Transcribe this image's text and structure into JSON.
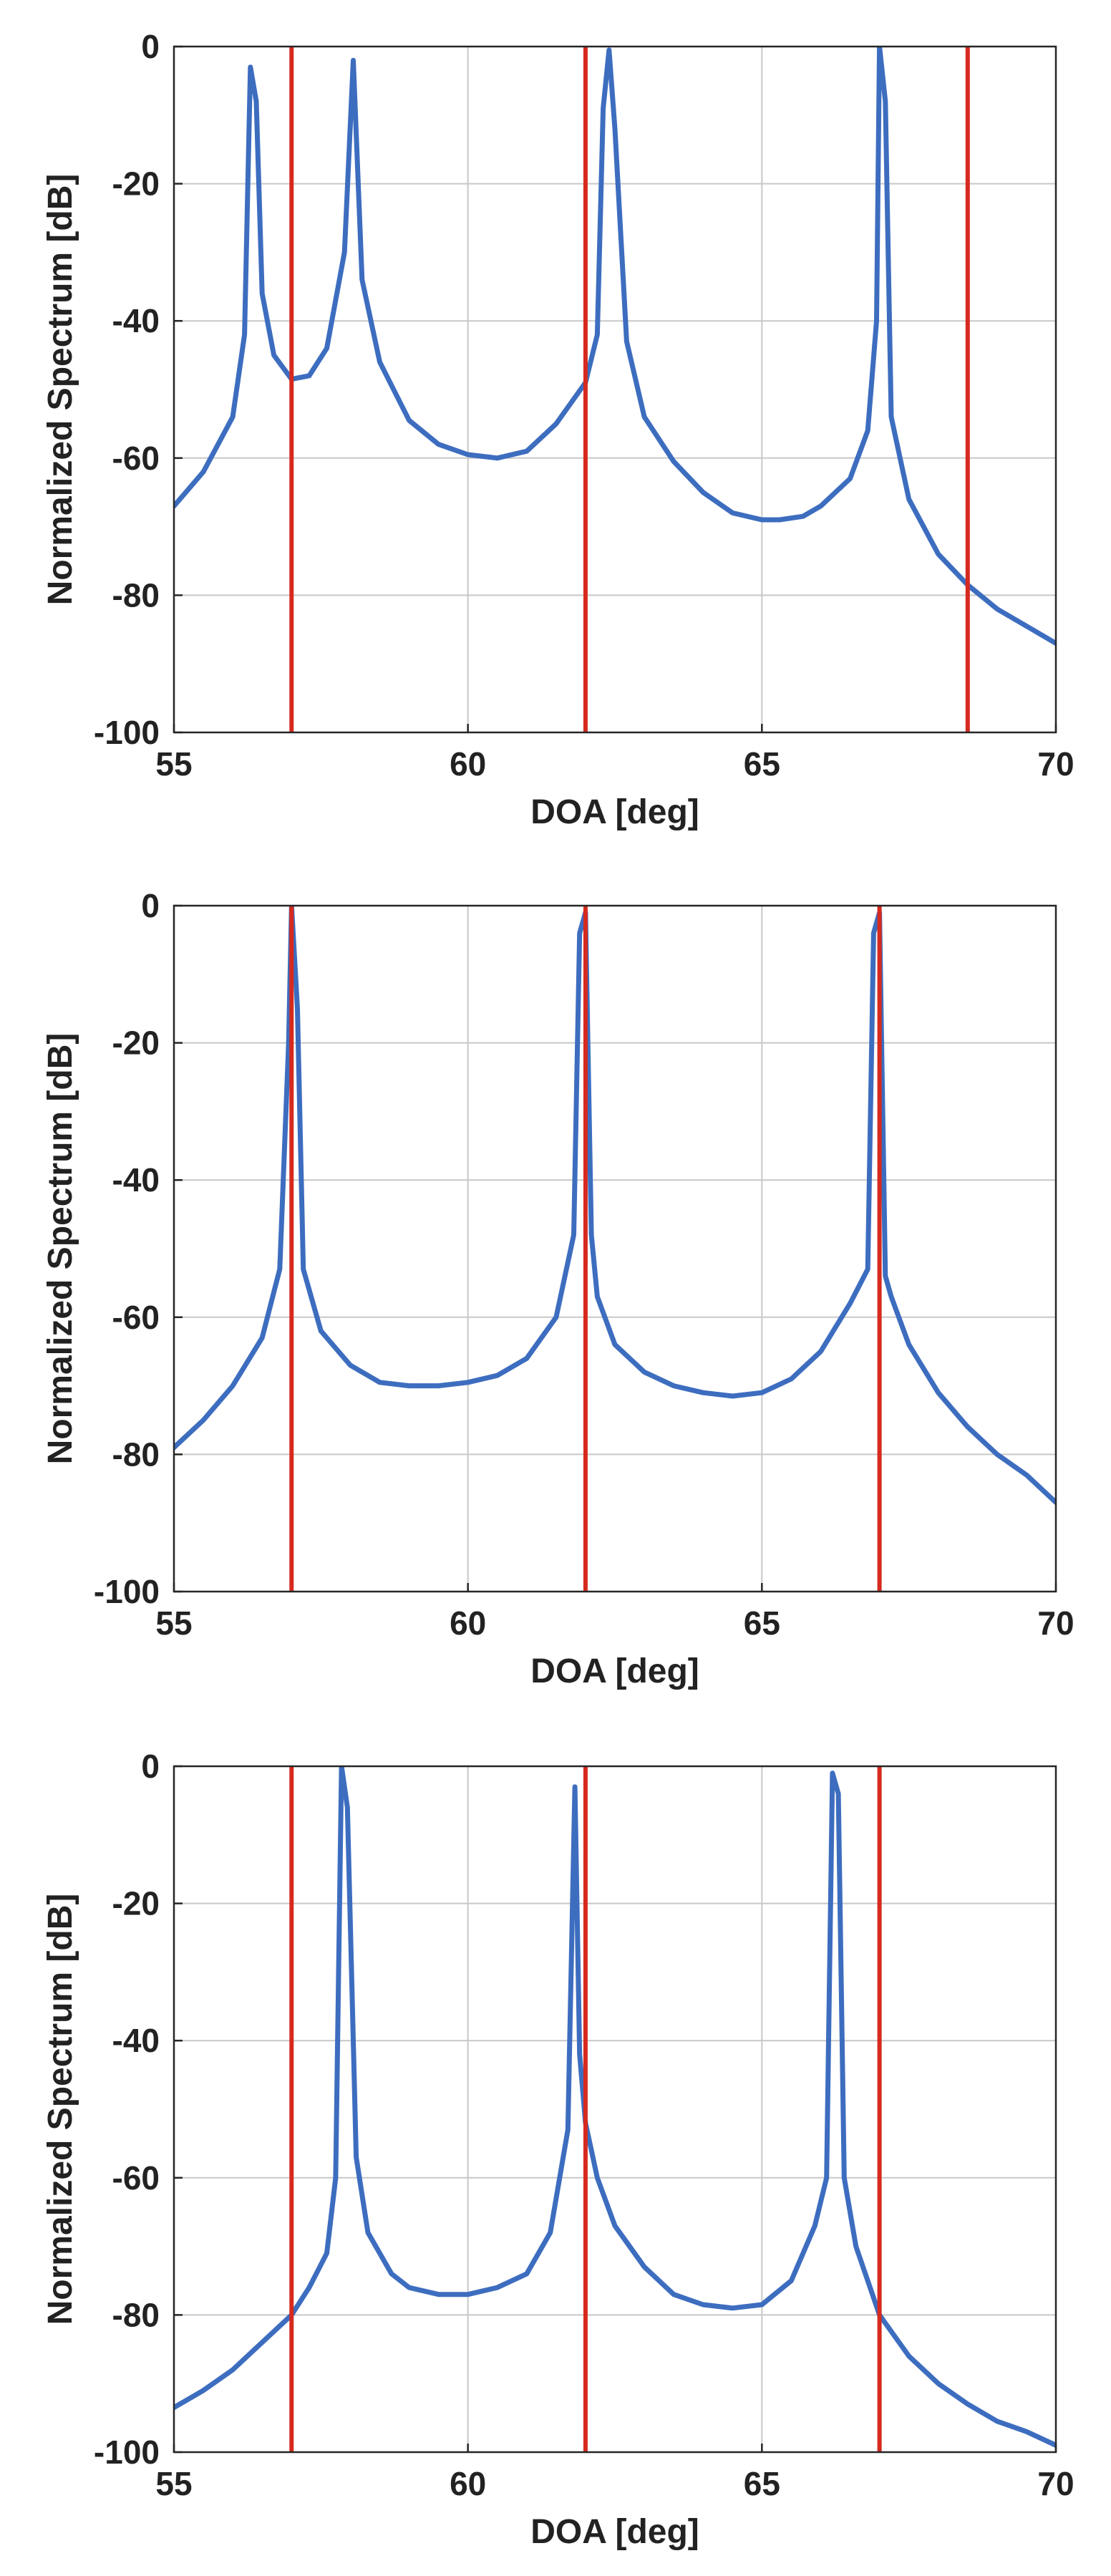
{
  "chart_data": [
    {
      "type": "line",
      "title": "",
      "xlabel": "DOA [deg]",
      "ylabel": "Normalized Spectrum [dB]",
      "xlim": [
        55,
        70
      ],
      "ylim": [
        -100,
        0
      ],
      "xticks": [
        55,
        60,
        65,
        70
      ],
      "yticks": [
        0,
        -20,
        -40,
        -60,
        -80,
        -100
      ],
      "grid": true,
      "colors": {
        "spectrum": "#3d6dbf",
        "markers": "#d62a1e"
      },
      "series": [
        {
          "name": "spectrum",
          "x": [
            55,
            55.5,
            56,
            56.2,
            56.3,
            56.4,
            56.5,
            56.7,
            57,
            57.3,
            57.6,
            57.9,
            58.05,
            58.2,
            58.5,
            59,
            59.5,
            60,
            60.5,
            61,
            61.5,
            62,
            62.2,
            62.3,
            62.4,
            62.5,
            62.7,
            63,
            63.5,
            64,
            64.5,
            65,
            65.3,
            65.7,
            66,
            66.5,
            66.8,
            66.95,
            67.0,
            67.1,
            67.2,
            67.5,
            68,
            68.5,
            69,
            69.5,
            70
          ],
          "y": [
            -67,
            -62,
            -54,
            -42,
            -3,
            -8,
            -36,
            -45,
            -48.5,
            -48,
            -44,
            -30,
            -2,
            -34,
            -46,
            -54.5,
            -58,
            -59.5,
            -60,
            -59,
            -55,
            -49,
            -42,
            -9,
            -0.5,
            -12,
            -43,
            -54,
            -60.5,
            -65,
            -68,
            -69,
            -69,
            -68.5,
            -67,
            -63,
            -56,
            -40,
            0,
            -8,
            -54,
            -66,
            -74,
            -78.5,
            -82,
            -84.5,
            -87
          ]
        }
      ],
      "markers": [
        57.0,
        62.0,
        68.5
      ]
    },
    {
      "type": "line",
      "title": "",
      "xlabel": "DOA [deg]",
      "ylabel": "Normalized Spectrum [dB]",
      "xlim": [
        55,
        70
      ],
      "ylim": [
        -100,
        0
      ],
      "xticks": [
        55,
        60,
        65,
        70
      ],
      "yticks": [
        0,
        -20,
        -40,
        -60,
        -80,
        -100
      ],
      "grid": true,
      "colors": {
        "spectrum": "#3d6dbf",
        "markers": "#d62a1e"
      },
      "series": [
        {
          "name": "spectrum",
          "x": [
            55,
            55.5,
            56,
            56.5,
            56.8,
            56.95,
            57.0,
            57.1,
            57.2,
            57.5,
            58,
            58.5,
            59,
            59.5,
            60,
            60.5,
            61,
            61.5,
            61.8,
            61.9,
            62.0,
            62.1,
            62.2,
            62.5,
            63,
            63.5,
            64,
            64.5,
            65,
            65.5,
            66,
            66.5,
            66.8,
            66.9,
            67.0,
            67.1,
            67.2,
            67.5,
            68,
            68.5,
            69,
            69.5,
            70
          ],
          "y": [
            -79,
            -75,
            -70,
            -63,
            -53,
            -20,
            0,
            -15,
            -53,
            -62,
            -67,
            -69.5,
            -70,
            -70,
            -69.5,
            -68.5,
            -66,
            -60,
            -48,
            -4,
            -1,
            -48,
            -57,
            -64,
            -68,
            -70,
            -71,
            -71.5,
            -71,
            -69,
            -65,
            -58,
            -53,
            -4,
            -1,
            -54,
            -57,
            -64,
            -71,
            -76,
            -80,
            -83,
            -87
          ]
        }
      ],
      "markers": [
        57.0,
        62.0,
        67.0
      ]
    },
    {
      "type": "line",
      "title": "",
      "xlabel": "DOA [deg]",
      "ylabel": "Normalized Spectrum [dB]",
      "xlim": [
        55,
        70
      ],
      "ylim": [
        -100,
        0
      ],
      "xticks": [
        55,
        60,
        65,
        70
      ],
      "yticks": [
        0,
        -20,
        -40,
        -60,
        -80,
        -100
      ],
      "grid": true,
      "colors": {
        "spectrum": "#3d6dbf",
        "markers": "#d62a1e"
      },
      "series": [
        {
          "name": "spectrum",
          "x": [
            55,
            55.5,
            56,
            56.5,
            57,
            57.3,
            57.6,
            57.75,
            57.85,
            57.95,
            58.1,
            58.3,
            58.7,
            59,
            59.5,
            60,
            60.5,
            61,
            61.4,
            61.7,
            61.82,
            61.9,
            62.0,
            62.2,
            62.5,
            63,
            63.5,
            64,
            64.5,
            65,
            65.5,
            65.9,
            66.1,
            66.2,
            66.3,
            66.4,
            66.6,
            67,
            67.5,
            68,
            68.5,
            69,
            69.5,
            70
          ],
          "y": [
            -93.5,
            -91,
            -88,
            -84,
            -80,
            -76,
            -71,
            -60,
            0,
            -6,
            -57,
            -68,
            -74,
            -76,
            -77,
            -77,
            -76,
            -74,
            -68,
            -53,
            -3,
            -42,
            -52,
            -60,
            -67,
            -73,
            -77,
            -78.5,
            -79,
            -78.5,
            -75,
            -67,
            -60,
            -1,
            -4,
            -60,
            -70,
            -80,
            -86,
            -90,
            -93,
            -95.5,
            -97,
            -99
          ]
        }
      ],
      "markers": [
        57.0,
        62.0,
        67.0
      ]
    }
  ]
}
